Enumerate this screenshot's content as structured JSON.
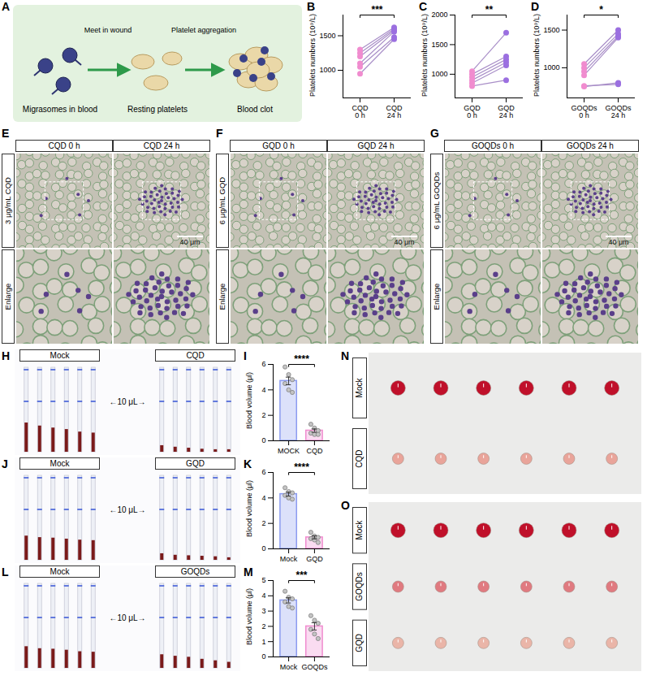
{
  "chart_data": [
    {
      "panel": "B",
      "type": "paired_dot",
      "categories": [
        "CQD 0 h",
        "CQD 24 h"
      ],
      "ylabel": "Platelets numbers (10⁹/L)",
      "pairs": [
        [
          1300,
          1620
        ],
        [
          1250,
          1600
        ],
        [
          1200,
          1580
        ],
        [
          1100,
          1560
        ],
        [
          1050,
          1480
        ],
        [
          950,
          1450
        ]
      ],
      "colors": [
        "#f08ccf",
        "#9b6fe0"
      ],
      "ylim": [
        600,
        1800
      ],
      "yticks": [
        1000,
        1500
      ],
      "annotation": "***"
    },
    {
      "panel": "C",
      "type": "paired_dot",
      "categories": [
        "GQD 0 h",
        "GQD 24 h"
      ],
      "ylabel": "Platelets numbers (10⁹/L)",
      "pairs": [
        [
          1050,
          1700
        ],
        [
          1000,
          1300
        ],
        [
          950,
          1250
        ],
        [
          900,
          1200
        ],
        [
          850,
          1150
        ],
        [
          800,
          900
        ]
      ],
      "colors": [
        "#f08ccf",
        "#9b6fe0"
      ],
      "ylim": [
        600,
        2000
      ],
      "yticks": [
        1000,
        1500,
        2000
      ],
      "annotation": "**"
    },
    {
      "panel": "D",
      "type": "paired_dot",
      "categories": [
        "GOQDs 0 h",
        "GOQDs 24 h"
      ],
      "ylabel": "Platelets numbers (10⁹/L)",
      "pairs": [
        [
          1050,
          1500
        ],
        [
          1000,
          1450
        ],
        [
          950,
          1420
        ],
        [
          900,
          1400
        ],
        [
          750,
          800
        ],
        [
          760,
          780
        ]
      ],
      "colors": [
        "#f08ccf",
        "#9b6fe0"
      ],
      "ylim": [
        600,
        1700
      ],
      "yticks": [
        1000,
        1500
      ],
      "annotation": "*"
    },
    {
      "panel": "I",
      "type": "bar",
      "categories": [
        "MOCK",
        "CQD"
      ],
      "ylabel": "Blood volume (μl)",
      "values": [
        4.7,
        0.8
      ],
      "errors": [
        0.3,
        0.13
      ],
      "points": [
        [
          5.8,
          5.2,
          4.8,
          4.5,
          4.0,
          3.8
        ],
        [
          1.3,
          1.0,
          0.8,
          0.6,
          0.5,
          0.5
        ]
      ],
      "colors": [
        "#8c9cf0",
        "#f08ccf"
      ],
      "ylim": [
        0,
        6
      ],
      "yticks": [
        0,
        2,
        4,
        6
      ],
      "annotation": "****"
    },
    {
      "panel": "K",
      "type": "bar",
      "categories": [
        "Mock",
        "GQD"
      ],
      "ylabel": "Blood volume (μl)",
      "values": [
        4.3,
        0.9
      ],
      "errors": [
        0.15,
        0.12
      ],
      "points": [
        [
          4.8,
          4.5,
          4.4,
          4.2,
          4.0,
          3.9
        ],
        [
          1.3,
          1.0,
          0.9,
          0.8,
          0.7,
          0.5
        ]
      ],
      "colors": [
        "#8c9cf0",
        "#f08ccf"
      ],
      "ylim": [
        0,
        6
      ],
      "yticks": [
        0,
        2,
        4,
        6
      ],
      "annotation": "****"
    },
    {
      "panel": "M",
      "type": "bar",
      "categories": [
        "Mock",
        "GOQDs"
      ],
      "ylabel": "Blood volume (μl)",
      "values": [
        3.7,
        2.0
      ],
      "errors": [
        0.17,
        0.24
      ],
      "points": [
        [
          4.3,
          3.9,
          3.8,
          3.6,
          3.3,
          3.2
        ],
        [
          2.7,
          2.4,
          2.2,
          1.8,
          1.5,
          1.2
        ]
      ],
      "colors": [
        "#8c9cf0",
        "#f08ccf"
      ],
      "ylim": [
        0,
        5
      ],
      "yticks": [
        0,
        1,
        2,
        3,
        4,
        5
      ],
      "annotation": "***"
    }
  ],
  "schematic": {
    "panel": "A",
    "stages": [
      "Migrasomes in blood",
      "Resting platelets",
      "Blood clot"
    ],
    "steps": [
      "Meet in wound",
      "Platelet aggregation"
    ]
  },
  "micrographs": [
    {
      "panel": "E",
      "columns": [
        "CQD 0 h",
        "CQD 24 h"
      ],
      "rows": [
        "3 μg/mL CQD",
        "Enlarge"
      ],
      "scale_bar": "40 μm"
    },
    {
      "panel": "F",
      "columns": [
        "GQD 0 h",
        "GQD 24 h"
      ],
      "rows": [
        "6 μg/mL GQD",
        "Enlarge"
      ],
      "scale_bar": "40 μm"
    },
    {
      "panel": "G",
      "columns": [
        "GOQDs 0 h",
        "GOQDs 24 h"
      ],
      "rows": [
        "6 μg/mL GOQDs",
        "Enlarge"
      ],
      "scale_bar": "40 μm"
    }
  ],
  "capillaries": [
    {
      "panel": "H",
      "groups": [
        "Mock",
        "CQD"
      ],
      "mark_label": "←10 μL→",
      "mark_volume": 10
    },
    {
      "panel": "J",
      "groups": [
        "Mock",
        "GQD"
      ],
      "mark_label": "←10 μL→",
      "mark_volume": 10
    },
    {
      "panel": "L",
      "groups": [
        "Mock",
        "GOQDs"
      ],
      "mark_label": "←10 μL→",
      "mark_volume": 10
    }
  ],
  "drops": [
    {
      "panel": "N",
      "rows": [
        "Mock",
        "CQD"
      ],
      "colors": [
        "#c0102a",
        "#e9a49a"
      ]
    },
    {
      "panel": "O",
      "rows": [
        "Mock",
        "GOQDs",
        "GQD"
      ],
      "colors": [
        "#c0102a",
        "#e07a80",
        "#eab5a8"
      ]
    }
  ]
}
